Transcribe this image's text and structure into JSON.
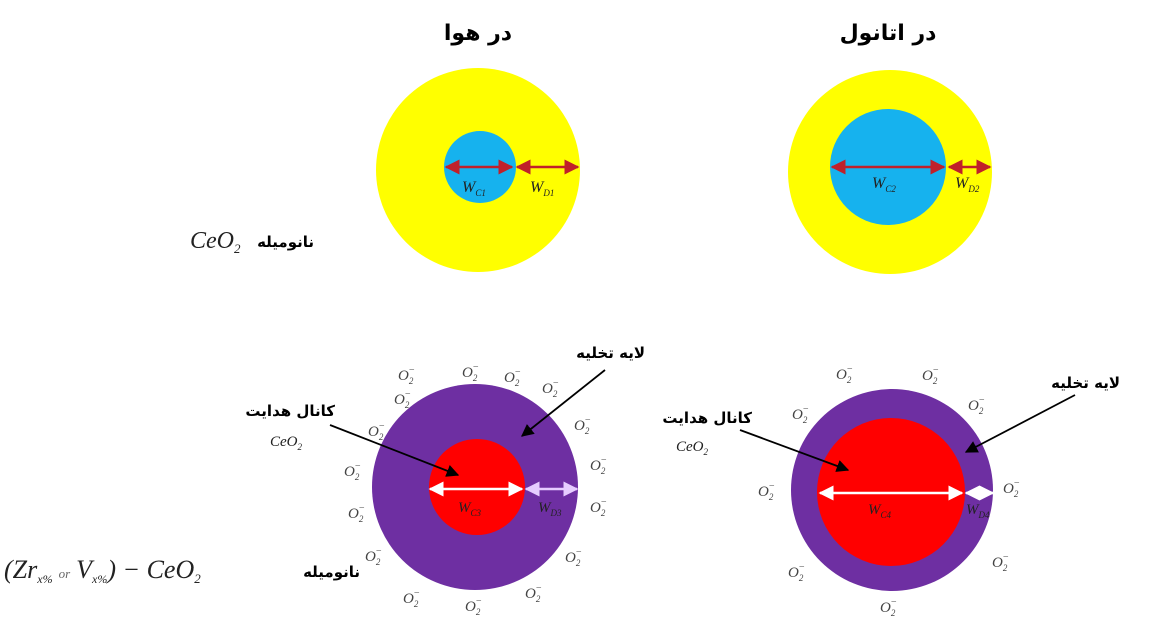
{
  "titles": {
    "left": "در هوا",
    "right": "در اتانول"
  },
  "row_labels": {
    "top": {
      "persian": "نانومیله",
      "formula_main": "CeO",
      "formula_sub": "2"
    },
    "bottom": {
      "persian": "نانومیله",
      "formula": "(Zr",
      "formula_sub1": "x%",
      "or_text": "or",
      "v": "V",
      "formula_sub2": "x%",
      "tail": ") − CeO",
      "tail_sub": "2"
    }
  },
  "top_left": {
    "label_wc": "W",
    "sub_wc": "C1",
    "label_wd": "W",
    "sub_wd": "D1"
  },
  "top_right": {
    "label_wc": "W",
    "sub_wc": "C2",
    "label_wd": "W",
    "sub_wd": "D2"
  },
  "bottom_left": {
    "depletion_label": "لایه تخلیه",
    "channel_label": "کانال هدایت",
    "channel_formula": "CeO",
    "channel_formula_sub": "2",
    "label_wc": "W",
    "sub_wc": "C3",
    "label_wd": "W",
    "sub_wd": "D3"
  },
  "bottom_right": {
    "depletion_label": "لایه تخلیه",
    "channel_label": "کانال هدایت",
    "channel_formula": "CeO",
    "channel_formula_sub": "2",
    "label_wc": "W",
    "sub_wc": "C4",
    "label_wd": "W",
    "sub_wd": "D4"
  },
  "oxygen_ion": {
    "base": "O",
    "sub": "2",
    "sup": "−"
  },
  "colors": {
    "yellow": "#ffff00",
    "cyan": "#16b2ee",
    "purple": "#6e2fa2",
    "red": "#ff0000",
    "arrow_red": "#c0202a",
    "arrow_white": "#ffffff",
    "arrow_white2": "#e6ccff"
  }
}
